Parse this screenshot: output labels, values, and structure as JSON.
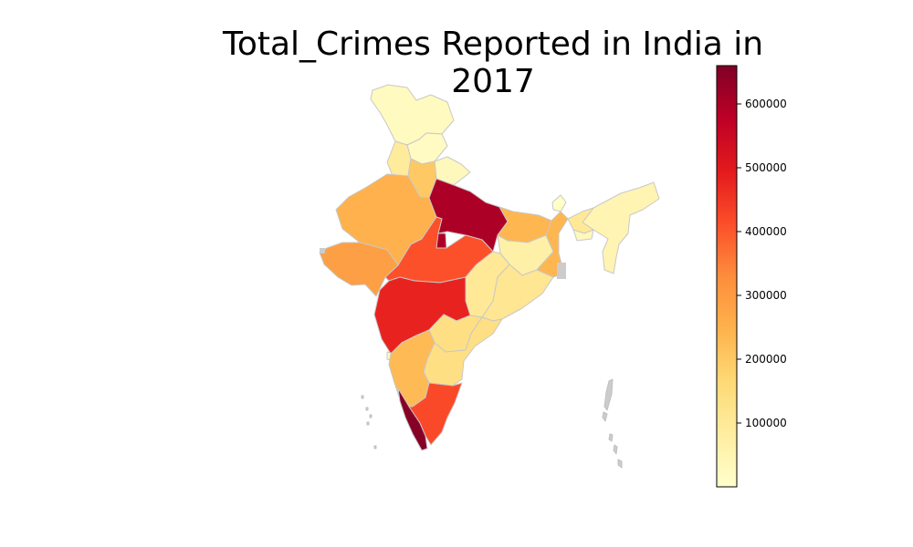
{
  "title": "Total_Crimes Reported in India in 2017",
  "colorbar": {
    "colormap": "YlOrRd",
    "min": 0,
    "max": 660000,
    "ticks": [
      100000,
      200000,
      300000,
      400000,
      500000,
      600000
    ],
    "tick_labels": [
      "100000",
      "200000",
      "300000",
      "400000",
      "500000",
      "600000"
    ]
  },
  "map_data": {
    "type": "choropleth",
    "border_color": "#c8c8c8",
    "regions": [
      {
        "id": "jammu-kashmir",
        "value": 24000
      },
      {
        "id": "himachal-pradesh",
        "value": 17000
      },
      {
        "id": "punjab",
        "value": 90000
      },
      {
        "id": "uttarakhand",
        "value": 30000
      },
      {
        "id": "haryana",
        "value": 200000
      },
      {
        "id": "delhi",
        "value": 600000
      },
      {
        "id": "rajasthan",
        "value": 250000
      },
      {
        "id": "uttar-pradesh",
        "value": 600000
      },
      {
        "id": "bihar",
        "value": 240000
      },
      {
        "id": "gujarat",
        "value": 290000
      },
      {
        "id": "madhya-pradesh",
        "value": 410000
      },
      {
        "id": "jharkhand",
        "value": 70000
      },
      {
        "id": "west-bengal",
        "value": 240000
      },
      {
        "id": "chhattisgarh",
        "value": 100000
      },
      {
        "id": "odisha",
        "value": 110000
      },
      {
        "id": "maharashtra",
        "value": 480000
      },
      {
        "id": "telangana",
        "value": 140000
      },
      {
        "id": "andhra-pradesh",
        "value": 140000
      },
      {
        "id": "karnataka",
        "value": 230000
      },
      {
        "id": "goa",
        "value": 30000
      },
      {
        "id": "kerala",
        "value": 650000
      },
      {
        "id": "tamil-nadu",
        "value": 420000
      },
      {
        "id": "sikkim",
        "value": 5000
      },
      {
        "id": "northeast",
        "value": 50000
      },
      {
        "id": "assam",
        "value": 100000
      },
      {
        "id": "meghalaya",
        "value": 30000
      }
    ]
  }
}
